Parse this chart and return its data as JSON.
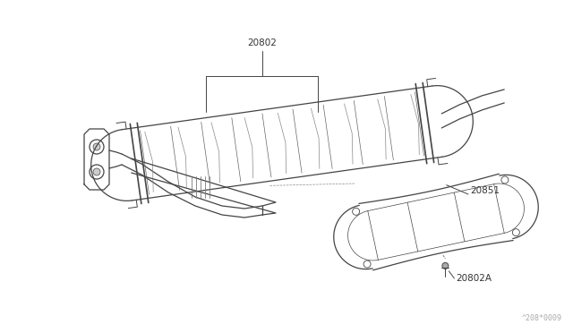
{
  "background_color": "#ffffff",
  "line_color": "#444444",
  "label_color": "#333333",
  "figure_width": 6.4,
  "figure_height": 3.72,
  "dpi": 100,
  "watermark": "^208*0009",
  "font_size": 7.5
}
